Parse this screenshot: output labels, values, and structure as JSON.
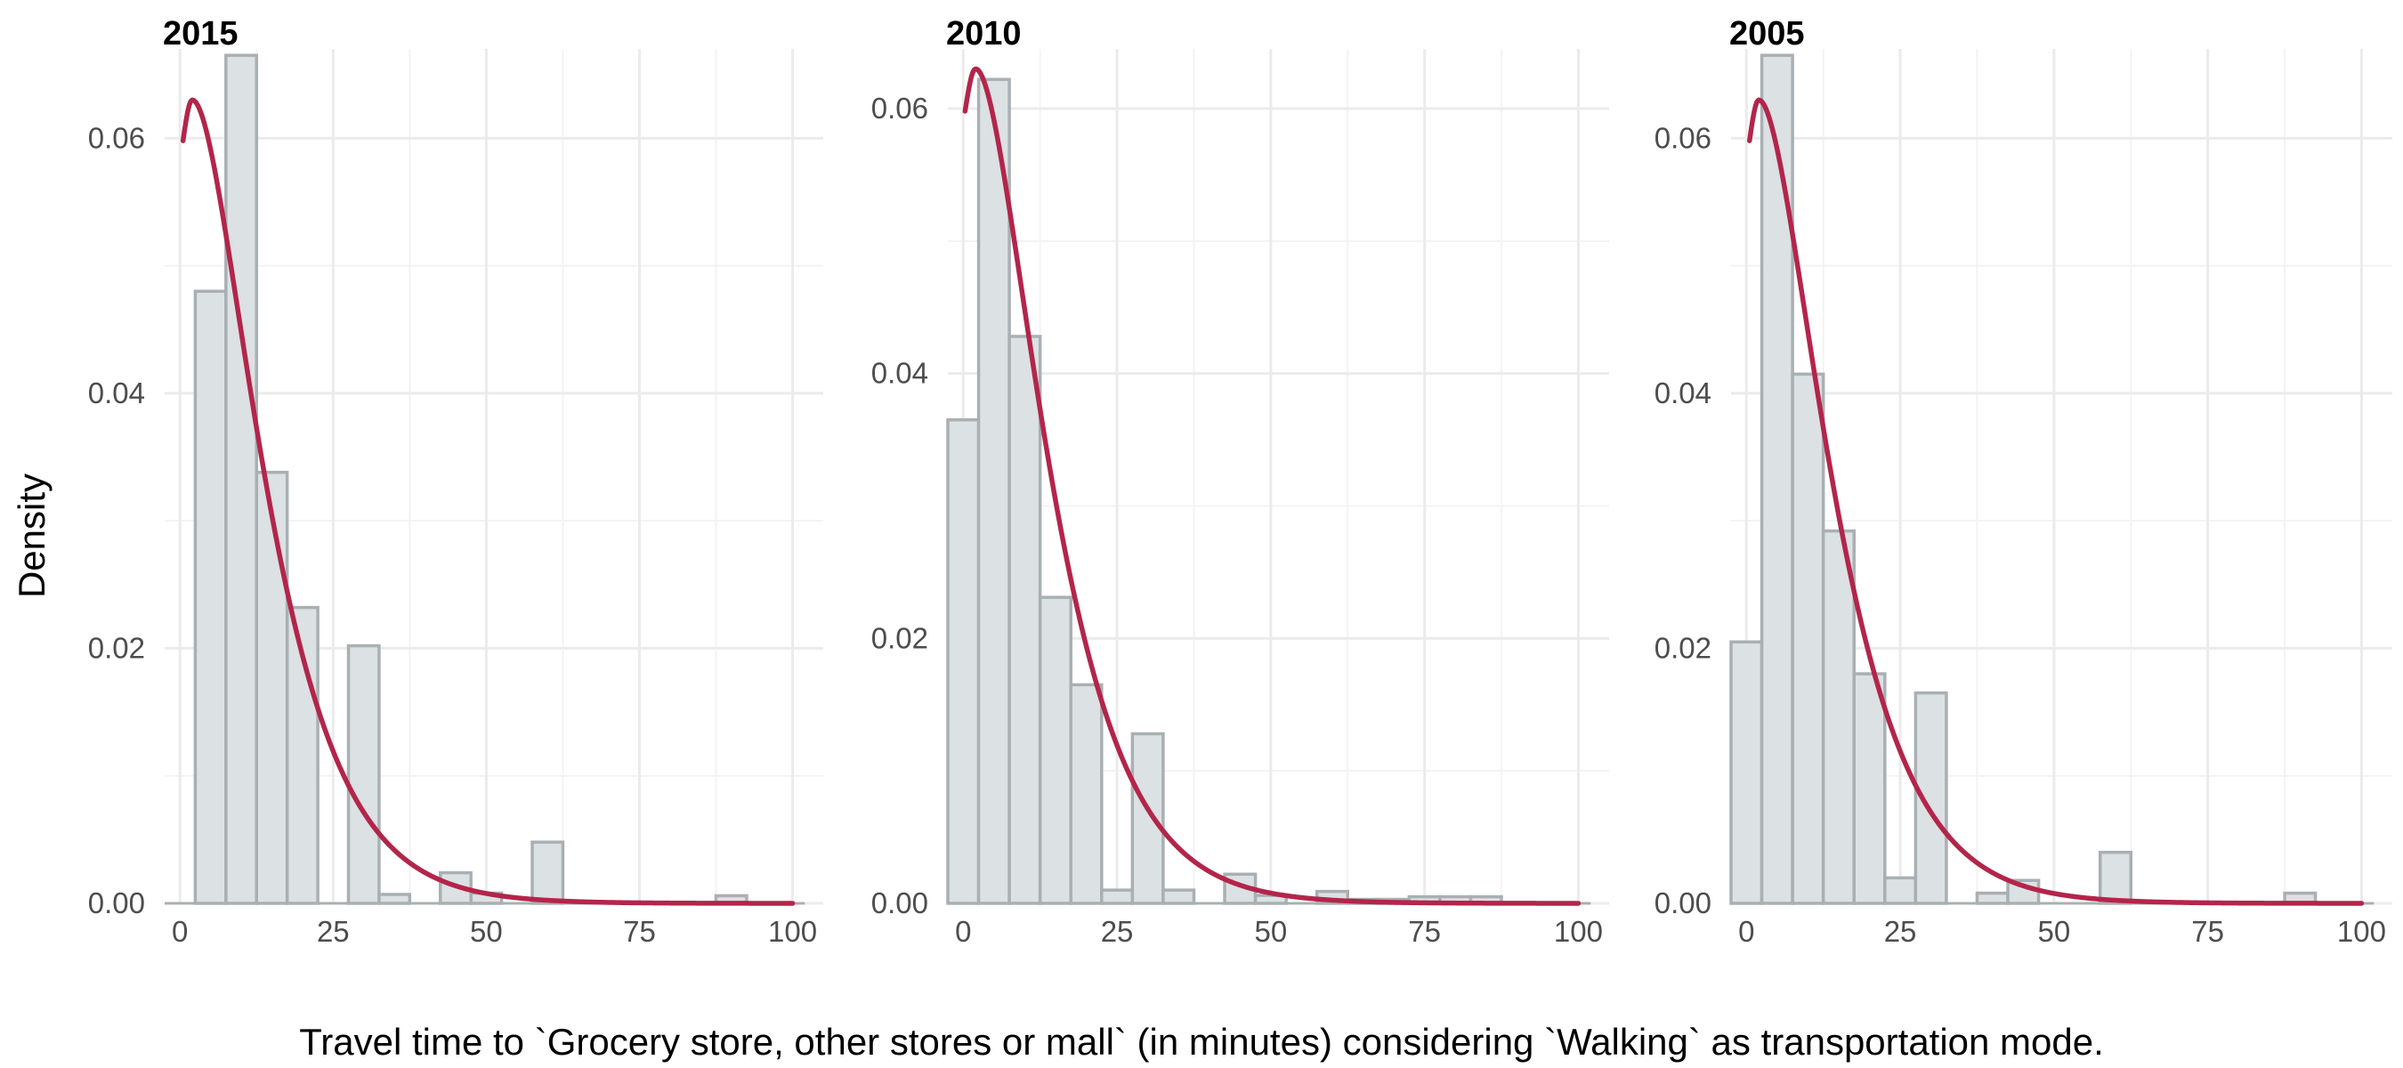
{
  "chart_data": {
    "type": "bar",
    "xlabel": "Travel time to `Grocery store, other stores or mall` (in minutes) considering `Walking` as transportation mode.",
    "ylabel": "Density",
    "bin_width": 5,
    "colors": {
      "bar_fill": "#dce1e3",
      "bar_outline": "#a9b0b3",
      "density_curve": "#b3254a",
      "grid": "#ebebeb"
    },
    "grid": true,
    "panels": [
      {
        "title": "2015",
        "xlim": [
          -2.5,
          105
        ],
        "ylim": [
          0,
          0.067
        ],
        "x_ticks": [
          0,
          25,
          50,
          75,
          100
        ],
        "y_ticks": [
          0,
          0.02,
          0.04,
          0.06
        ],
        "y_tick_labels": [
          "0.00",
          "0.02",
          "0.04",
          "0.06"
        ],
        "bins": [
          {
            "x0": 2.5,
            "x1": 7.5,
            "value": 0.048
          },
          {
            "x0": 7.5,
            "x1": 12.5,
            "value": 0.0665
          },
          {
            "x0": 12.5,
            "x1": 17.5,
            "value": 0.0338
          },
          {
            "x0": 17.5,
            "x1": 22.5,
            "value": 0.0232
          },
          {
            "x0": 27.5,
            "x1": 32.5,
            "value": 0.0202
          },
          {
            "x0": 32.5,
            "x1": 37.5,
            "value": 0.0007
          },
          {
            "x0": 42.5,
            "x1": 47.5,
            "value": 0.0024
          },
          {
            "x0": 47.5,
            "x1": 52.5,
            "value": 0.0008
          },
          {
            "x0": 57.5,
            "x1": 62.5,
            "value": 0.0048
          },
          {
            "x0": 87.5,
            "x1": 92.5,
            "value": 0.0006
          }
        ],
        "density_curve": {
          "x_range": [
            0.5,
            100
          ],
          "peak_x": 2.0,
          "peak_y": 0.063,
          "start_y": 0.0598,
          "decay_scale": 7.5
        }
      },
      {
        "title": "2010",
        "xlim": [
          -2.5,
          105
        ],
        "ylim": [
          0,
          0.0645
        ],
        "x_ticks": [
          0,
          25,
          50,
          75,
          100
        ],
        "y_ticks": [
          0,
          0.02,
          0.04,
          0.06
        ],
        "y_tick_labels": [
          "0.00",
          "0.02",
          "0.04",
          "0.06"
        ],
        "bins": [
          {
            "x0": -2.5,
            "x1": 2.5,
            "value": 0.0365
          },
          {
            "x0": 2.5,
            "x1": 7.5,
            "value": 0.0622
          },
          {
            "x0": 7.5,
            "x1": 12.5,
            "value": 0.0428
          },
          {
            "x0": 12.5,
            "x1": 17.5,
            "value": 0.0231
          },
          {
            "x0": 17.5,
            "x1": 22.5,
            "value": 0.0165
          },
          {
            "x0": 22.5,
            "x1": 27.5,
            "value": 0.001
          },
          {
            "x0": 27.5,
            "x1": 32.5,
            "value": 0.0128
          },
          {
            "x0": 32.5,
            "x1": 37.5,
            "value": 0.001
          },
          {
            "x0": 42.5,
            "x1": 47.5,
            "value": 0.0022
          },
          {
            "x0": 47.5,
            "x1": 52.5,
            "value": 0.0006
          },
          {
            "x0": 57.5,
            "x1": 62.5,
            "value": 0.0009
          },
          {
            "x0": 62.5,
            "x1": 67.5,
            "value": 0.0003
          },
          {
            "x0": 67.5,
            "x1": 72.5,
            "value": 0.0003
          },
          {
            "x0": 72.5,
            "x1": 77.5,
            "value": 0.0005
          },
          {
            "x0": 77.5,
            "x1": 82.5,
            "value": 0.0005
          },
          {
            "x0": 82.5,
            "x1": 87.5,
            "value": 0.0005
          }
        ],
        "density_curve": {
          "x_range": [
            0.3,
            100
          ],
          "peak_x": 2.0,
          "peak_y": 0.063,
          "start_y": 0.0598,
          "decay_scale": 7.5
        }
      },
      {
        "title": "2005",
        "xlim": [
          -2.5,
          105
        ],
        "ylim": [
          0,
          0.067
        ],
        "x_ticks": [
          0,
          25,
          50,
          75,
          100
        ],
        "y_ticks": [
          0,
          0.02,
          0.04,
          0.06
        ],
        "y_tick_labels": [
          "0.00",
          "0.02",
          "0.04",
          "0.06"
        ],
        "bins": [
          {
            "x0": -2.5,
            "x1": 2.5,
            "value": 0.0205
          },
          {
            "x0": 2.5,
            "x1": 7.5,
            "value": 0.0665
          },
          {
            "x0": 7.5,
            "x1": 12.5,
            "value": 0.0415
          },
          {
            "x0": 12.5,
            "x1": 17.5,
            "value": 0.0292
          },
          {
            "x0": 17.5,
            "x1": 22.5,
            "value": 0.018
          },
          {
            "x0": 22.5,
            "x1": 27.5,
            "value": 0.002
          },
          {
            "x0": 27.5,
            "x1": 32.5,
            "value": 0.0165
          },
          {
            "x0": 37.5,
            "x1": 42.5,
            "value": 0.0008
          },
          {
            "x0": 42.5,
            "x1": 47.5,
            "value": 0.0018
          },
          {
            "x0": 57.5,
            "x1": 62.5,
            "value": 0.004
          },
          {
            "x0": 87.5,
            "x1": 92.5,
            "value": 0.0008
          }
        ],
        "density_curve": {
          "x_range": [
            0.5,
            100
          ],
          "peak_x": 2.0,
          "peak_y": 0.063,
          "start_y": 0.0598,
          "decay_scale": 7.5
        }
      }
    ]
  }
}
